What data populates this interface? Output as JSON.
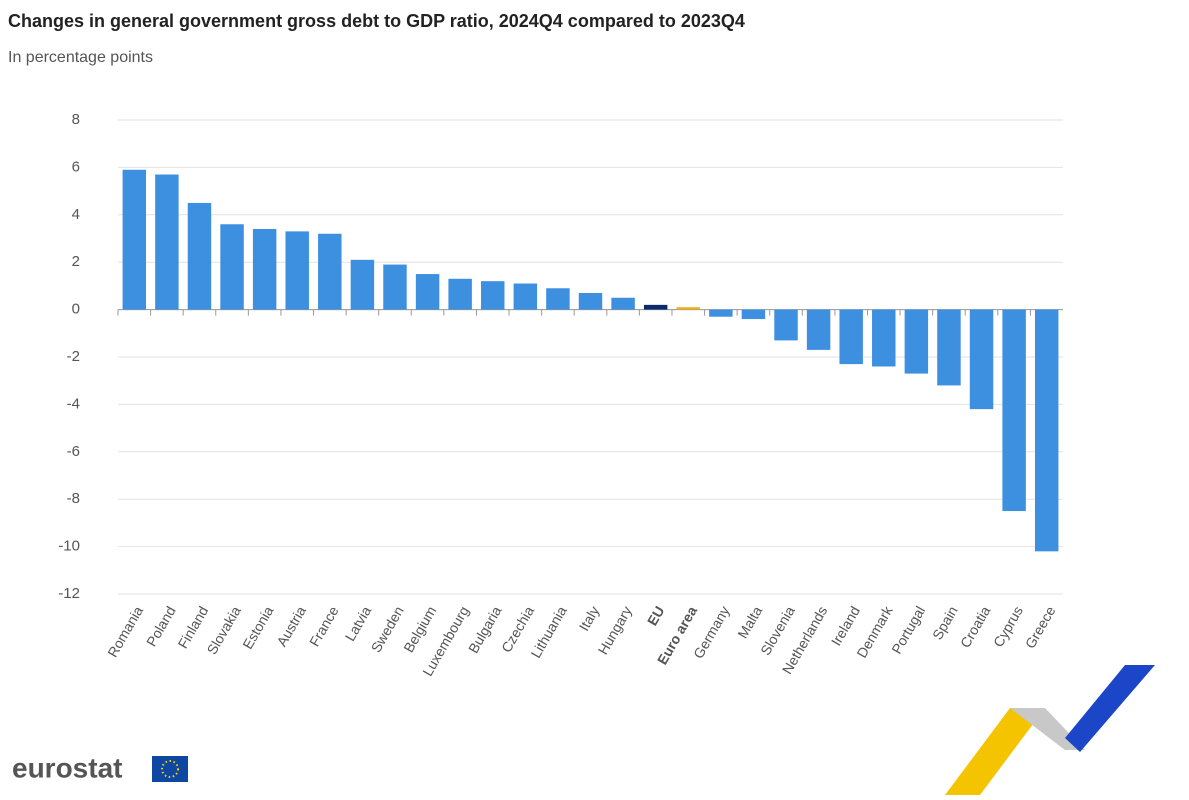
{
  "chart_data": {
    "type": "bar",
    "title": "Changes in general government gross debt to GDP ratio, 2024Q4 compared to 2023Q4",
    "subtitle": "In percentage points",
    "categories": [
      "Romania",
      "Poland",
      "Finland",
      "Slovakia",
      "Estonia",
      "Austria",
      "France",
      "Latvia",
      "Sweden",
      "Belgium",
      "Luxembourg",
      "Bulgaria",
      "Czechia",
      "Lithuania",
      "Italy",
      "Hungary",
      "EU",
      "Euro area",
      "Germany",
      "Malta",
      "Slovenia",
      "Netherlands",
      "Ireland",
      "Denmark",
      "Portugal",
      "Spain",
      "Croatia",
      "Cyprus",
      "Greece"
    ],
    "values": [
      5.9,
      5.7,
      4.5,
      3.6,
      3.4,
      3.3,
      3.2,
      2.1,
      1.9,
      1.5,
      1.3,
      1.2,
      1.1,
      0.9,
      0.7,
      0.5,
      0.2,
      0.1,
      -0.3,
      -0.4,
      -1.3,
      -1.7,
      -2.3,
      -2.4,
      -2.7,
      -3.2,
      -4.2,
      -8.5,
      -10.2
    ],
    "color": "#3d8fe0",
    "colors": [
      "#3d8fe0",
      "#3d8fe0",
      "#3d8fe0",
      "#3d8fe0",
      "#3d8fe0",
      "#3d8fe0",
      "#3d8fe0",
      "#3d8fe0",
      "#3d8fe0",
      "#3d8fe0",
      "#3d8fe0",
      "#3d8fe0",
      "#3d8fe0",
      "#3d8fe0",
      "#3d8fe0",
      "#3d8fe0",
      "#0e2a6b",
      "#e8b419",
      "#3d8fe0",
      "#3d8fe0",
      "#3d8fe0",
      "#3d8fe0",
      "#3d8fe0",
      "#3d8fe0",
      "#3d8fe0",
      "#3d8fe0",
      "#3d8fe0",
      "#3d8fe0",
      "#3d8fe0"
    ],
    "ylim": [
      -12,
      8
    ],
    "yticks": [
      -12,
      -10,
      -8,
      -6,
      -4,
      -2,
      0,
      2,
      4,
      6,
      8
    ],
    "grid": true
  },
  "logo": "eurostat"
}
